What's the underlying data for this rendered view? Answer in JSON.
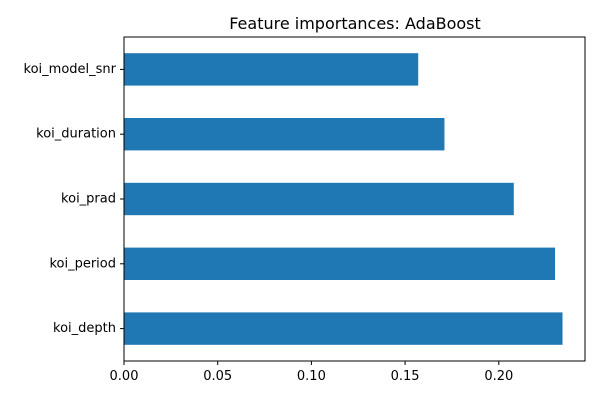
{
  "chart_data": {
    "type": "bar",
    "orientation": "horizontal",
    "title": "Feature importances: AdaBoost",
    "xlabel": "",
    "ylabel": "",
    "categories": [
      "koi_depth",
      "koi_period",
      "koi_prad",
      "koi_duration",
      "koi_model_snr"
    ],
    "values": [
      0.234,
      0.23,
      0.208,
      0.171,
      0.157
    ],
    "xlim": [
      0,
      0.246
    ],
    "xticks": [
      0.0,
      0.05,
      0.1,
      0.15,
      0.2
    ],
    "xtick_labels": [
      "0.00",
      "0.05",
      "0.10",
      "0.15",
      "0.20"
    ],
    "category_order": "bottom-to-top",
    "bar_color": "#1f77b4",
    "grid": false,
    "legend": "none"
  }
}
